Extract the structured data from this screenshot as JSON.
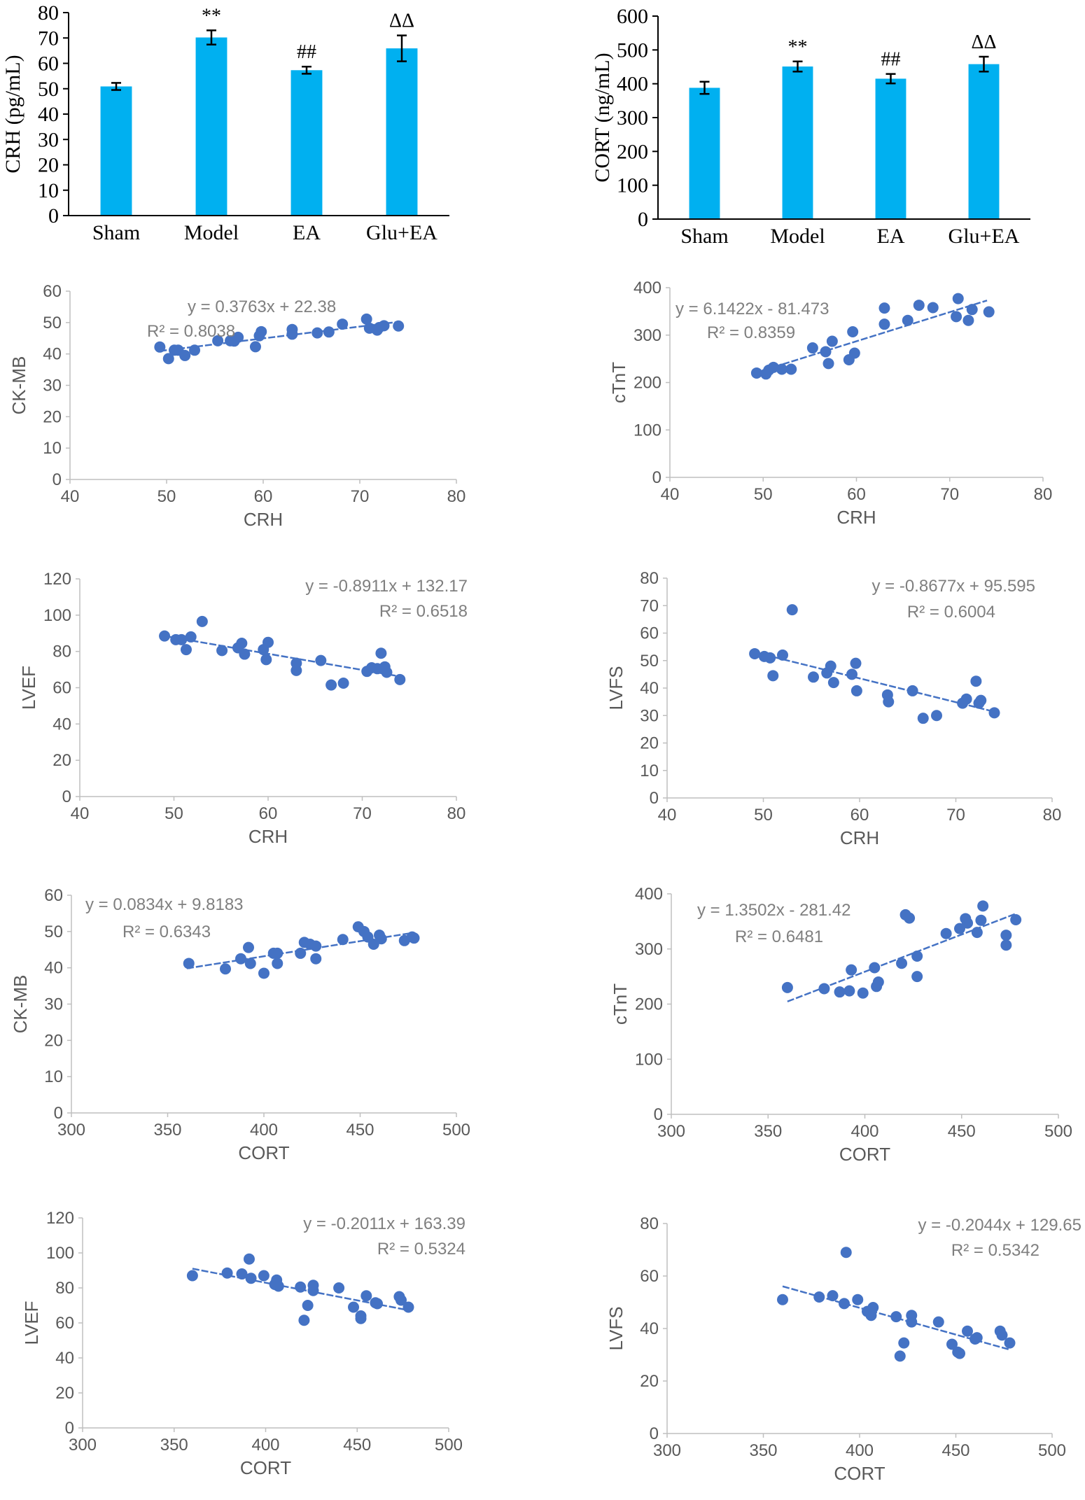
{
  "colors": {
    "bar": "#00B0F0",
    "point": "#4472C4",
    "trend": "#4472C4",
    "axis": "#000000",
    "text": "#000000",
    "scatter_text": "#595959",
    "equation_text": "#7F7F7F",
    "scatter_axis": "#BFBFBF"
  },
  "chart_data": [
    {
      "type": "bar",
      "ylabel": "CRH (pg/mL)",
      "categories": [
        "Sham",
        "Model",
        "EA",
        "Glu+EA"
      ],
      "values": [
        50.9,
        70.2,
        57.3,
        65.9
      ],
      "errors": [
        1.4,
        2.8,
        1.4,
        5.1
      ],
      "annotations": [
        "",
        "**",
        "##",
        "ΔΔ"
      ],
      "ylim": [
        0,
        80
      ],
      "yticks": [
        "0",
        "10",
        "20",
        "30",
        "40",
        "50",
        "60",
        "70",
        "80"
      ]
    },
    {
      "type": "bar",
      "ylabel": "CORT (ng/mL)",
      "categories": [
        "Sham",
        "Model",
        "EA",
        "Glu+EA"
      ],
      "values": [
        388,
        451,
        415,
        458
      ],
      "errors": [
        18,
        15,
        14,
        22
      ],
      "annotations": [
        "",
        "**",
        "##",
        "ΔΔ"
      ],
      "ylim": [
        0,
        600
      ],
      "yticks": [
        "0",
        "100",
        "200",
        "300",
        "400",
        "500",
        "600"
      ]
    },
    {
      "type": "scatter",
      "xlabel": "CRH",
      "ylabel": "CK-MB",
      "xlim": [
        40,
        80
      ],
      "ylim": [
        0,
        60
      ],
      "xticks": [
        "40",
        "50",
        "60",
        "70",
        "80"
      ],
      "yticks": [
        "0",
        "10",
        "20",
        "30",
        "40",
        "50",
        "60"
      ],
      "equation": "y = 0.3763x + 22.38",
      "r2": "R² = 0.8038",
      "trend": {
        "slope": 0.3763,
        "intercept": 22.38,
        "x_range": [
          49.3,
          74
        ]
      },
      "points": [
        [
          49.3,
          42.2
        ],
        [
          50.2,
          38.5
        ],
        [
          50.8,
          41.2
        ],
        [
          51.2,
          41.2
        ],
        [
          51.9,
          39.5
        ],
        [
          52.9,
          41.2
        ],
        [
          55.3,
          44.2
        ],
        [
          56.6,
          44.2
        ],
        [
          57.0,
          44.1
        ],
        [
          57.4,
          45.3
        ],
        [
          59.2,
          42.3
        ],
        [
          59.6,
          45.8
        ],
        [
          59.8,
          47.1
        ],
        [
          63.0,
          46.3
        ],
        [
          63.0,
          47.8
        ],
        [
          65.6,
          46.7
        ],
        [
          66.8,
          47.0
        ],
        [
          68.2,
          49.5
        ],
        [
          70.7,
          51.1
        ],
        [
          71.0,
          48.2
        ],
        [
          71.8,
          47.6
        ],
        [
          72.0,
          48.4
        ],
        [
          72.5,
          49.0
        ],
        [
          74.0,
          48.9
        ]
      ]
    },
    {
      "type": "scatter",
      "xlabel": "CRH",
      "ylabel": "cTnT",
      "xlim": [
        40,
        80
      ],
      "ylim": [
        0,
        400
      ],
      "xticks": [
        "40",
        "50",
        "60",
        "70",
        "80"
      ],
      "yticks": [
        "0",
        "100",
        "200",
        "300",
        "400"
      ],
      "equation": "y = 6.1422x - 81.473",
      "r2": "R² = 0.8359",
      "trend": {
        "slope": 6.1422,
        "intercept": -81.473,
        "x_range": [
          49.3,
          74
        ]
      },
      "points": [
        [
          49.3,
          220
        ],
        [
          50.3,
          218
        ],
        [
          50.6,
          226
        ],
        [
          51.1,
          232
        ],
        [
          52.0,
          228
        ],
        [
          53.0,
          228
        ],
        [
          55.3,
          273
        ],
        [
          56.7,
          265
        ],
        [
          57.0,
          240
        ],
        [
          57.4,
          287
        ],
        [
          59.2,
          248
        ],
        [
          59.6,
          307
        ],
        [
          59.8,
          262
        ],
        [
          63.0,
          357
        ],
        [
          63.0,
          323
        ],
        [
          65.5,
          331
        ],
        [
          66.7,
          363
        ],
        [
          68.2,
          358
        ],
        [
          70.7,
          339
        ],
        [
          70.9,
          377
        ],
        [
          72.0,
          331
        ],
        [
          72.4,
          354
        ],
        [
          74.2,
          349
        ]
      ]
    },
    {
      "type": "scatter",
      "xlabel": "CRH",
      "ylabel": "LVEF",
      "xlim": [
        40,
        80
      ],
      "ylim": [
        0,
        120
      ],
      "xticks": [
        "40",
        "50",
        "60",
        "70",
        "80"
      ],
      "yticks": [
        "0",
        "20",
        "40",
        "60",
        "80",
        "100",
        "120"
      ],
      "equation": "y = -0.8911x + 132.17",
      "r2": "R² = 0.6518",
      "trend": {
        "slope": -0.8911,
        "intercept": 132.17,
        "x_range": [
          49,
          74
        ]
      },
      "points": [
        [
          49.0,
          88.5
        ],
        [
          50.2,
          86.5
        ],
        [
          50.8,
          86.5
        ],
        [
          51.3,
          81
        ],
        [
          51.8,
          88
        ],
        [
          53.0,
          96.5
        ],
        [
          55.1,
          80.5
        ],
        [
          56.8,
          82
        ],
        [
          57.2,
          84.5
        ],
        [
          57.5,
          78.5
        ],
        [
          59.5,
          81
        ],
        [
          59.8,
          75.5
        ],
        [
          60.0,
          85
        ],
        [
          63.0,
          73.5
        ],
        [
          63.0,
          69.5
        ],
        [
          65.6,
          75
        ],
        [
          66.7,
          61.5
        ],
        [
          68.0,
          62.5
        ],
        [
          70.5,
          69
        ],
        [
          71.0,
          71
        ],
        [
          71.6,
          70.5
        ],
        [
          72.0,
          79
        ],
        [
          72.4,
          71.5
        ],
        [
          72.6,
          68.5
        ],
        [
          74.0,
          64.5
        ]
      ]
    },
    {
      "type": "scatter",
      "xlabel": "CRH",
      "ylabel": "LVFS",
      "xlim": [
        40,
        80
      ],
      "ylim": [
        0,
        80
      ],
      "xticks": [
        "40",
        "50",
        "60",
        "70",
        "80"
      ],
      "yticks": [
        "0",
        "10",
        "20",
        "30",
        "40",
        "50",
        "60",
        "70",
        "80"
      ],
      "equation": "y = -0.8677x + 95.595",
      "r2": "R² = 0.6004",
      "trend": {
        "slope": -0.8677,
        "intercept": 95.595,
        "x_range": [
          49.3,
          74
        ]
      },
      "points": [
        [
          49.1,
          52.5
        ],
        [
          50.1,
          51.5
        ],
        [
          50.7,
          51
        ],
        [
          51.0,
          44.5
        ],
        [
          52.0,
          52
        ],
        [
          53.0,
          68.5
        ],
        [
          55.2,
          44
        ],
        [
          56.6,
          45.5
        ],
        [
          57.0,
          48
        ],
        [
          57.3,
          42
        ],
        [
          59.2,
          45
        ],
        [
          59.6,
          49
        ],
        [
          59.7,
          39
        ],
        [
          62.9,
          37.5
        ],
        [
          63.0,
          35
        ],
        [
          65.5,
          39
        ],
        [
          66.6,
          29
        ],
        [
          68.0,
          30
        ],
        [
          70.7,
          34.5
        ],
        [
          71.1,
          36
        ],
        [
          72.1,
          42.5
        ],
        [
          72.4,
          34.5
        ],
        [
          72.6,
          35.5
        ],
        [
          74.0,
          31
        ]
      ]
    },
    {
      "type": "scatter",
      "xlabel": "CORT",
      "ylabel": "CK-MB",
      "xlim": [
        300,
        500
      ],
      "ylim": [
        0,
        60
      ],
      "xticks": [
        "300",
        "350",
        "400",
        "450",
        "500"
      ],
      "yticks": [
        "0",
        "10",
        "20",
        "30",
        "40",
        "50",
        "60"
      ],
      "equation": "y = 0.0834x + 9.8183",
      "r2": "R² = 0.6343",
      "trend": {
        "slope": 0.0834,
        "intercept": 9.8183,
        "x_range": [
          360,
          478
        ]
      },
      "points": [
        [
          361,
          41.2
        ],
        [
          380,
          39.7
        ],
        [
          388,
          42.5
        ],
        [
          392,
          45.6
        ],
        [
          393,
          41.2
        ],
        [
          400,
          38.5
        ],
        [
          405,
          44
        ],
        [
          407,
          41.2
        ],
        [
          407,
          44
        ],
        [
          419,
          44
        ],
        [
          421,
          47
        ],
        [
          424,
          46.5
        ],
        [
          427,
          42.5
        ],
        [
          427,
          46
        ],
        [
          441,
          47.8
        ],
        [
          449,
          51.3
        ],
        [
          452,
          50
        ],
        [
          454,
          48.5
        ],
        [
          457,
          46.5
        ],
        [
          460,
          49
        ],
        [
          461,
          48
        ],
        [
          473,
          47.5
        ],
        [
          477,
          48.5
        ],
        [
          478,
          48.2
        ]
      ]
    },
    {
      "type": "scatter",
      "xlabel": "CORT",
      "ylabel": "cTnT",
      "xlim": [
        300,
        500
      ],
      "ylim": [
        0,
        400
      ],
      "xticks": [
        "300",
        "350",
        "400",
        "450",
        "500"
      ],
      "yticks": [
        "0",
        "100",
        "200",
        "300",
        "400"
      ],
      "equation": "y = 1.3502x - 281.42",
      "r2": "R² = 0.6481",
      "trend": {
        "slope": 1.3502,
        "intercept": -281.42,
        "x_range": [
          360,
          478
        ]
      },
      "points": [
        [
          360,
          230
        ],
        [
          379,
          228
        ],
        [
          387,
          222
        ],
        [
          392,
          224
        ],
        [
          393,
          262
        ],
        [
          399,
          220
        ],
        [
          405,
          266
        ],
        [
          406,
          232
        ],
        [
          407,
          240
        ],
        [
          419,
          274
        ],
        [
          421,
          362
        ],
        [
          423,
          356
        ],
        [
          427,
          250
        ],
        [
          427,
          287
        ],
        [
          442,
          328
        ],
        [
          449,
          337
        ],
        [
          452,
          355
        ],
        [
          453,
          347
        ],
        [
          458,
          330
        ],
        [
          460,
          352
        ],
        [
          461,
          378
        ],
        [
          473,
          307
        ],
        [
          473,
          325
        ],
        [
          478,
          353
        ]
      ]
    },
    {
      "type": "scatter",
      "xlabel": "CORT",
      "ylabel": "LVEF",
      "xlim": [
        300,
        500
      ],
      "ylim": [
        0,
        120
      ],
      "xticks": [
        "300",
        "350",
        "400",
        "450",
        "500"
      ],
      "yticks": [
        "0",
        "20",
        "40",
        "60",
        "80",
        "100",
        "120"
      ],
      "equation": "y = -0.2011x + 163.39",
      "r2": "R² = 0.5324",
      "trend": {
        "slope": -0.2011,
        "intercept": 163.39,
        "x_range": [
          360,
          478
        ]
      },
      "points": [
        [
          360,
          87
        ],
        [
          379,
          88.5
        ],
        [
          387,
          88
        ],
        [
          391,
          96.5
        ],
        [
          392,
          85.5
        ],
        [
          399,
          87
        ],
        [
          405,
          82
        ],
        [
          406,
          84.5
        ],
        [
          407,
          81
        ],
        [
          419,
          80.5
        ],
        [
          421,
          61.5
        ],
        [
          423,
          70
        ],
        [
          426,
          78.5
        ],
        [
          426,
          81.5
        ],
        [
          440,
          80
        ],
        [
          448,
          69
        ],
        [
          452,
          64
        ],
        [
          452,
          62.5
        ],
        [
          455,
          75.5
        ],
        [
          460,
          71.5
        ],
        [
          461,
          71
        ],
        [
          473,
          75
        ],
        [
          474,
          73
        ],
        [
          478,
          69
        ]
      ]
    },
    {
      "type": "scatter",
      "xlabel": "CORT",
      "ylabel": "LVFS",
      "xlim": [
        300,
        500
      ],
      "ylim": [
        0,
        80
      ],
      "xticks": [
        "300",
        "350",
        "400",
        "450",
        "500"
      ],
      "yticks": [
        "0",
        "20",
        "40",
        "60",
        "80"
      ],
      "equation": "y = -0.2044x + 129.65",
      "r2": "R² = 0.5342",
      "trend": {
        "slope": -0.2044,
        "intercept": 129.65,
        "x_range": [
          360,
          478
        ]
      },
      "points": [
        [
          360,
          51
        ],
        [
          379,
          52
        ],
        [
          386,
          52.5
        ],
        [
          392,
          49.5
        ],
        [
          393,
          69
        ],
        [
          399,
          51
        ],
        [
          404,
          46.5
        ],
        [
          406,
          45
        ],
        [
          407,
          48
        ],
        [
          419,
          44.5
        ],
        [
          421,
          29.5
        ],
        [
          423,
          34.5
        ],
        [
          427,
          42.5
        ],
        [
          427,
          45
        ],
        [
          441,
          42.5
        ],
        [
          448,
          34
        ],
        [
          451,
          31
        ],
        [
          452,
          30.5
        ],
        [
          456,
          39
        ],
        [
          460,
          36
        ],
        [
          461,
          36.5
        ],
        [
          473,
          39
        ],
        [
          474,
          37.5
        ],
        [
          478,
          34.5
        ]
      ]
    }
  ]
}
